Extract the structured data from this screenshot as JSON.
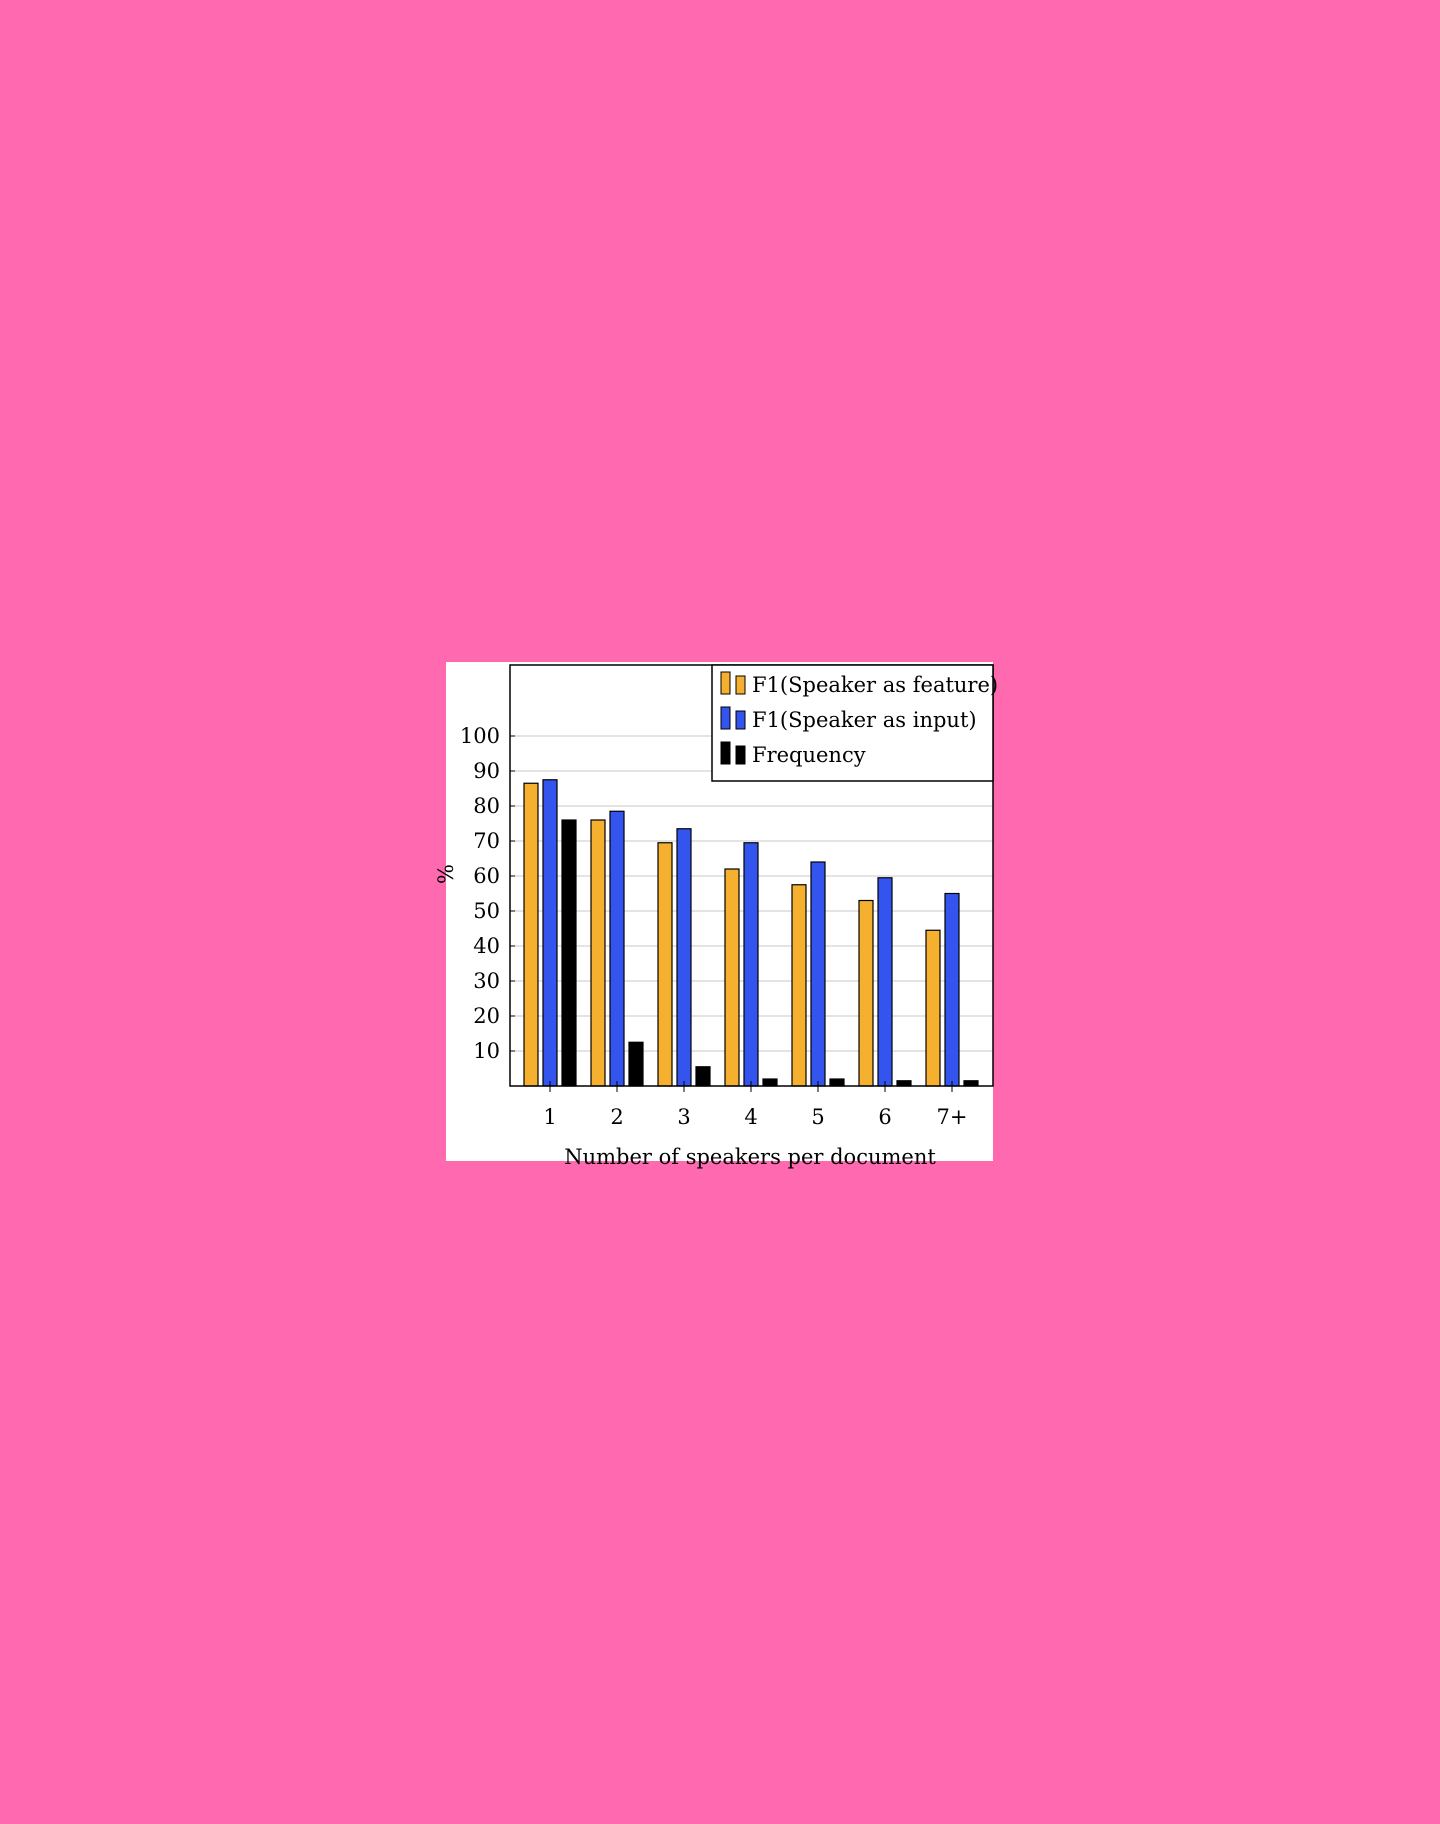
{
  "page": {
    "background": "#ff69b0"
  },
  "chart_data": {
    "type": "bar",
    "categories": [
      "1",
      "2",
      "3",
      "4",
      "5",
      "6",
      "7+"
    ],
    "series": [
      {
        "name": "F1(Speaker as feature)",
        "color": "#f5b02f",
        "values": [
          86.5,
          76,
          69.5,
          62,
          57.5,
          53,
          44.5
        ]
      },
      {
        "name": "F1(Speaker as input)",
        "color": "#3355ee",
        "values": [
          87.5,
          78.5,
          73.5,
          69.5,
          64,
          59.5,
          55
        ]
      },
      {
        "name": "Frequency",
        "color": "#000000",
        "values": [
          76,
          12.5,
          5.5,
          2,
          2,
          1.5,
          1.5
        ]
      }
    ],
    "xlabel": "Number of speakers per document",
    "ylabel": "%",
    "yticks": [
      10,
      20,
      30,
      40,
      50,
      60,
      70,
      80,
      90,
      100
    ],
    "ylim": [
      0,
      120
    ],
    "grid": true,
    "legend_position": "top-right"
  }
}
